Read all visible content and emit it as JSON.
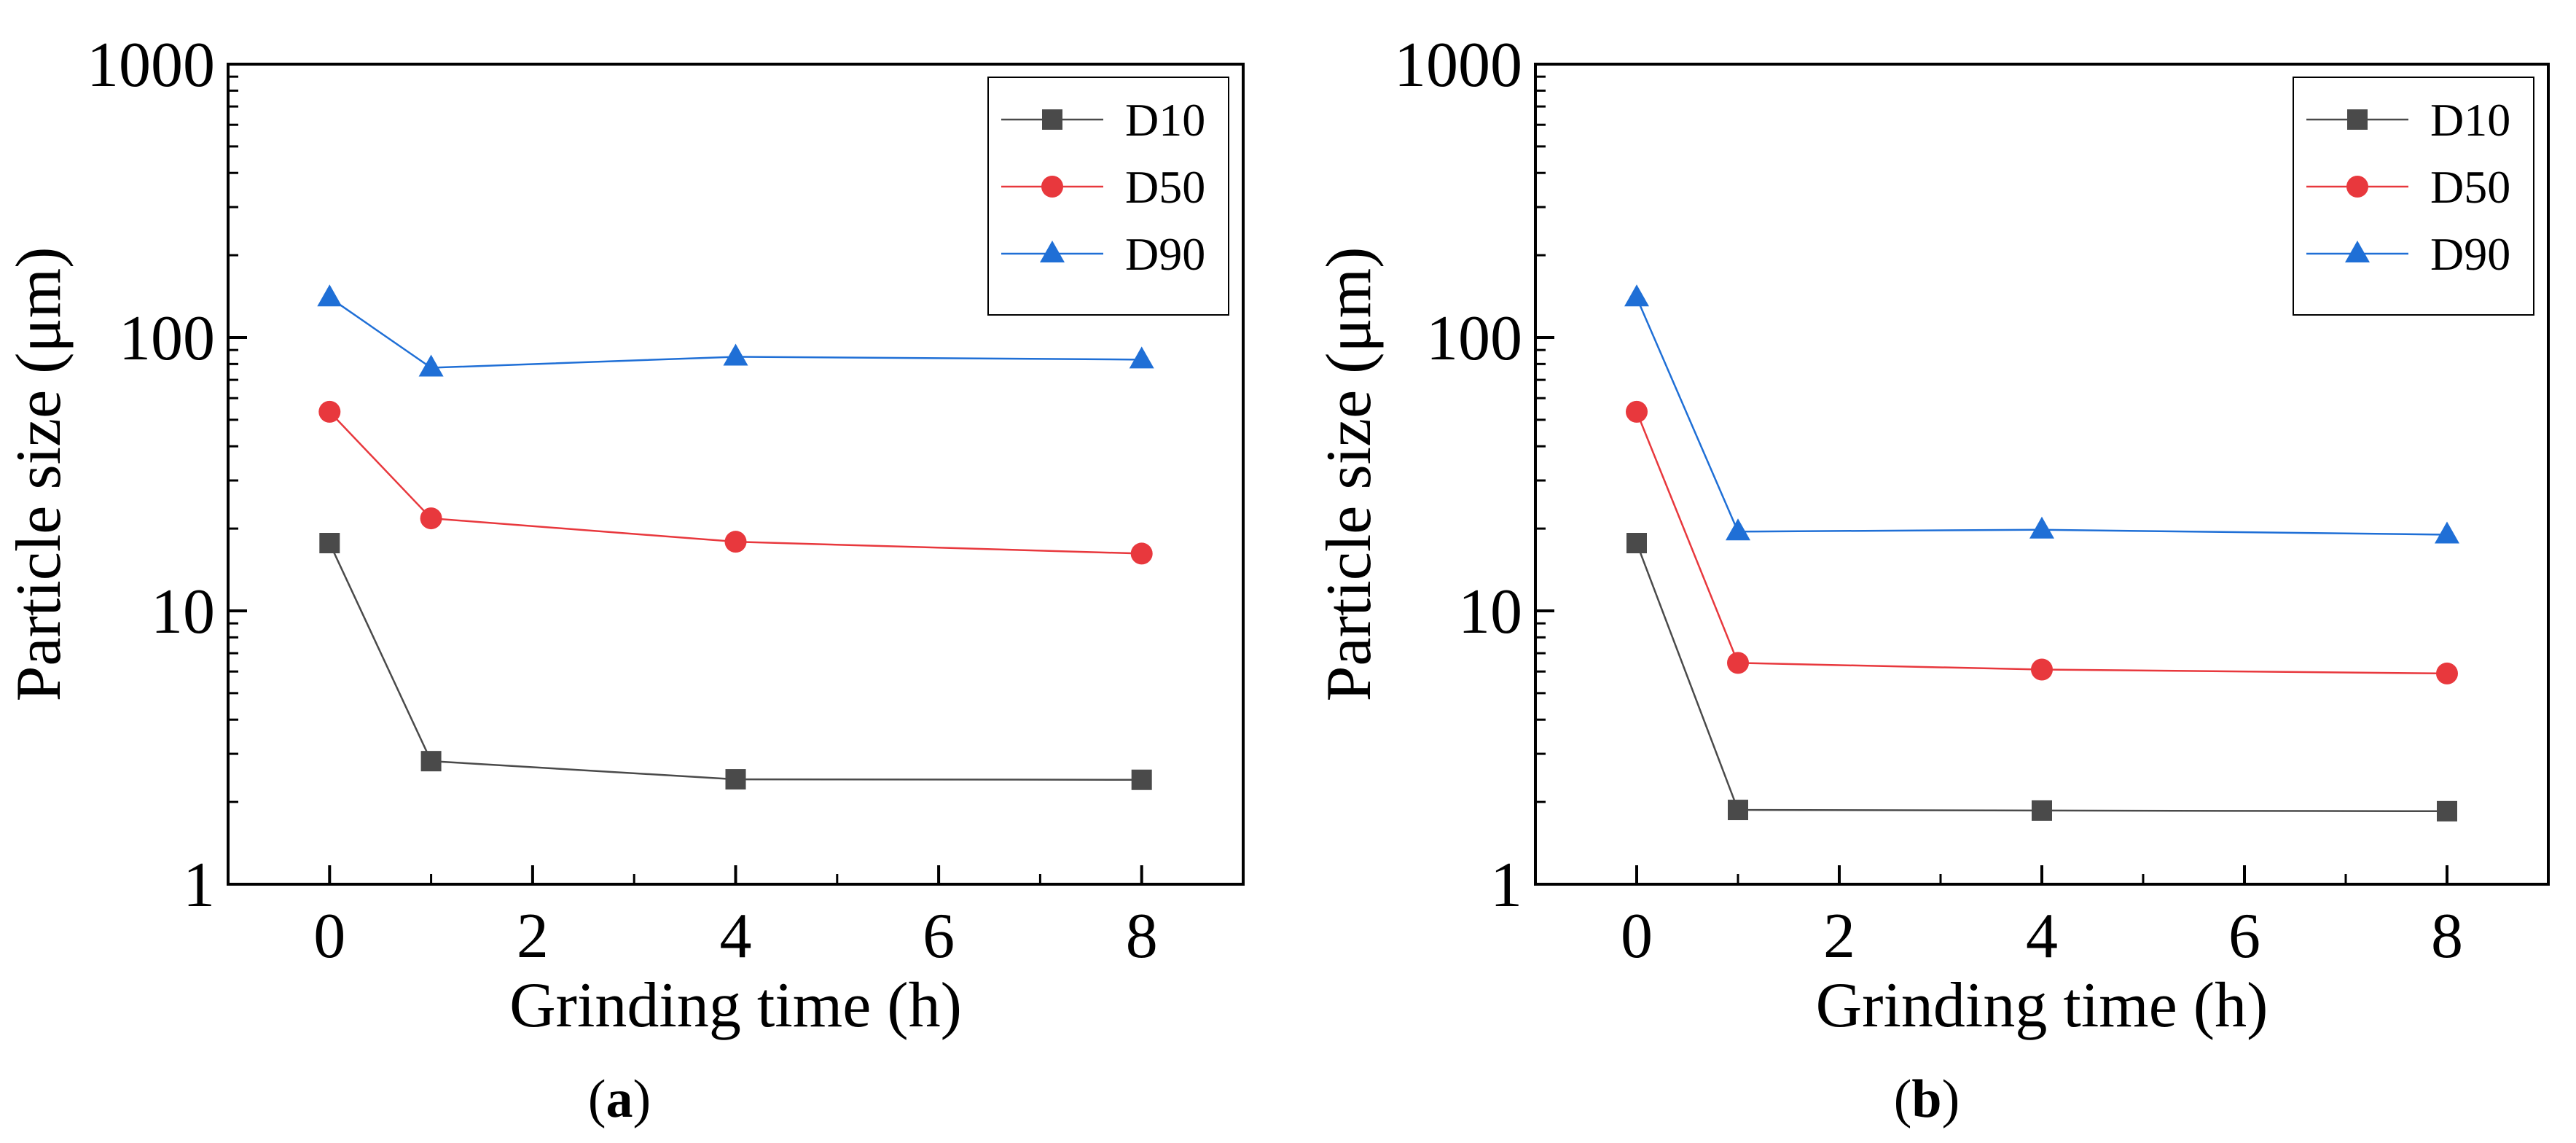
{
  "chart_data": [
    {
      "type": "line",
      "panel_label": {
        "open": "(",
        "letter": "a",
        "close": ")"
      },
      "xlabel": "Grinding time (h)",
      "ylabel": "Particle size (μm)",
      "xlim": [
        -1,
        9
      ],
      "ylim": [
        1,
        1000
      ],
      "yscale": "log",
      "xticks": [
        0,
        2,
        4,
        6,
        8
      ],
      "yticks": [
        1,
        10,
        100,
        1000
      ],
      "xtick_labels": [
        "0",
        "2",
        "4",
        "6",
        "8"
      ],
      "ytick_labels": [
        "1",
        "10",
        "100",
        "1000"
      ],
      "legend_position": "top-right",
      "x": [
        0,
        1,
        4,
        8
      ],
      "series": [
        {
          "name": "D10",
          "marker": "square",
          "color": "#4a4a4a",
          "values": [
            17.7,
            2.82,
            2.42,
            2.41
          ]
        },
        {
          "name": "D50",
          "marker": "circle",
          "color": "#e8383d",
          "values": [
            53.5,
            21.8,
            17.9,
            16.2
          ]
        },
        {
          "name": "D90",
          "marker": "triangle",
          "color": "#1f6fd6",
          "values": [
            140,
            77.5,
            85.0,
            83.0
          ]
        }
      ]
    },
    {
      "type": "line",
      "panel_label": {
        "open": "(",
        "letter": "b",
        "close": ")"
      },
      "xlabel": "Grinding time (h)",
      "ylabel": "Particle size (μm)",
      "xlim": [
        -1,
        9
      ],
      "ylim": [
        1,
        1000
      ],
      "yscale": "log",
      "xticks": [
        0,
        2,
        4,
        6,
        8
      ],
      "yticks": [
        1,
        10,
        100,
        1000
      ],
      "xtick_labels": [
        "0",
        "2",
        "4",
        "6",
        "8"
      ],
      "ytick_labels": [
        "1",
        "10",
        "100",
        "1000"
      ],
      "legend_position": "top-right",
      "x": [
        0,
        1,
        4,
        8
      ],
      "series": [
        {
          "name": "D10",
          "marker": "square",
          "color": "#4a4a4a",
          "values": [
            17.7,
            1.87,
            1.86,
            1.85
          ]
        },
        {
          "name": "D50",
          "marker": "circle",
          "color": "#e8383d",
          "values": [
            53.5,
            6.45,
            6.1,
            5.9
          ]
        },
        {
          "name": "D90",
          "marker": "triangle",
          "color": "#1f6fd6",
          "values": [
            140,
            19.5,
            19.8,
            19.0
          ]
        }
      ]
    }
  ]
}
